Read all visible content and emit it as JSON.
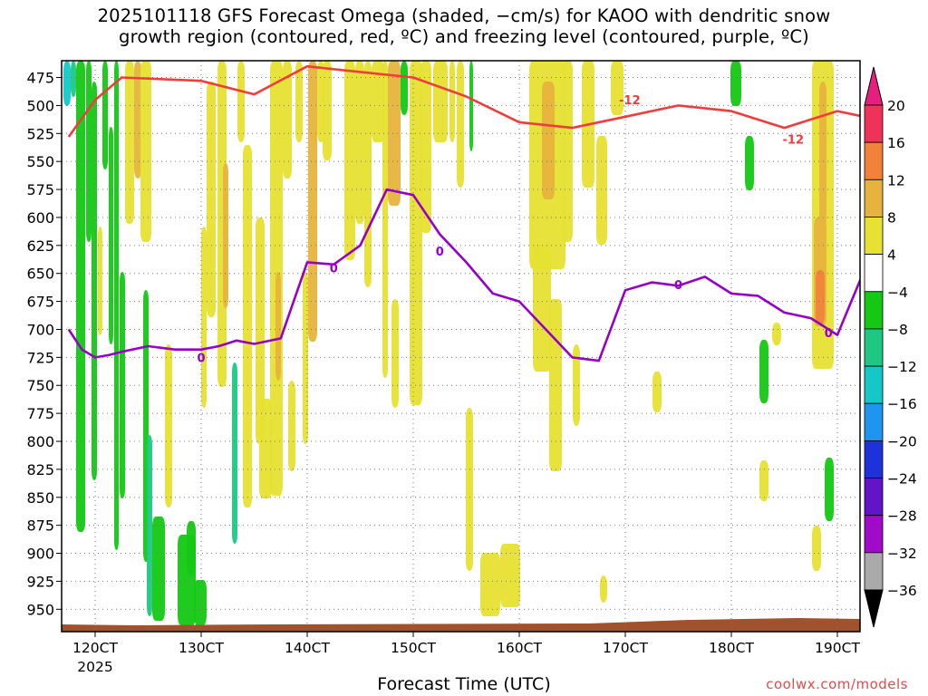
{
  "title_line1": "2025101118 GFS Forecast Omega (shaded, −cm/s) for KAOO with dendritic snow",
  "title_line2": "growth region (contoured, red, ºC) and freezing level (contoured, purple, ºC)",
  "credit": "coolwx.com/models",
  "chart_data": {
    "type": "heatmap",
    "title": "2025101118 GFS Forecast Omega (shaded, −cm/s) for KAOO with dendritic snow growth region (contoured, red, ºC) and freezing level (contoured, purple, ºC)",
    "xlabel": "Forecast Time (UTC)",
    "ylabel": "",
    "x_range": [
      "2025-10-11 18Z",
      "2025-10-19 06Z"
    ],
    "x_ticks": [
      {
        "value": "2025-10-12 00Z",
        "label": "120CT"
      },
      {
        "value": "2025-10-13 00Z",
        "label": "130CT"
      },
      {
        "value": "2025-10-14 00Z",
        "label": "140CT"
      },
      {
        "value": "2025-10-15 00Z",
        "label": "150CT"
      },
      {
        "value": "2025-10-16 00Z",
        "label": "160CT"
      },
      {
        "value": "2025-10-17 00Z",
        "label": "170CT"
      },
      {
        "value": "2025-10-18 00Z",
        "label": "180CT"
      },
      {
        "value": "2025-10-19 00Z",
        "label": "190CT"
      }
    ],
    "year_label": "2025",
    "y_ticks": [
      475,
      500,
      525,
      550,
      575,
      600,
      625,
      650,
      675,
      700,
      725,
      750,
      775,
      800,
      825,
      850,
      875,
      900,
      925,
      950
    ],
    "y_range": [
      460,
      970
    ],
    "grid": true,
    "colorbar": {
      "levels": [
        20,
        16,
        12,
        8,
        4,
        -4,
        -8,
        -12,
        -16,
        -20,
        -24,
        -28,
        -32,
        -36
      ],
      "colors": [
        "#f0325a",
        "#f0823c",
        "#e6b43c",
        "#e6e132",
        "#ffffff",
        "#14c814",
        "#1ec882",
        "#14c8c8",
        "#1e96f0",
        "#1e32dc",
        "#6414c8",
        "#a00ac8",
        "#aaaaaa"
      ],
      "top_color": "#e61e7d",
      "bottom_color": "#000000"
    },
    "series": [
      {
        "name": "0",
        "color": "#9600c8",
        "label_points": [
          [
            "2025-10-13 00Z",
            725
          ],
          [
            "2025-10-14 06Z",
            645
          ],
          [
            "2025-10-15 06Z",
            630
          ],
          [
            "2025-10-17 12Z",
            660
          ],
          [
            "2025-10-18 22Z",
            703
          ]
        ],
        "points": [
          [
            "2025-10-11 18Z",
            700
          ],
          [
            "2025-10-11 21Z",
            718
          ],
          [
            "2025-10-12 00Z",
            725
          ],
          [
            "2025-10-12 03Z",
            723
          ],
          [
            "2025-10-12 06Z",
            720
          ],
          [
            "2025-10-12 12Z",
            715
          ],
          [
            "2025-10-12 18Z",
            718
          ],
          [
            "2025-10-13 00Z",
            718
          ],
          [
            "2025-10-13 04Z",
            715
          ],
          [
            "2025-10-13 08Z",
            710
          ],
          [
            "2025-10-13 12Z",
            713
          ],
          [
            "2025-10-13 18Z",
            708
          ],
          [
            "2025-10-14 00Z",
            640
          ],
          [
            "2025-10-14 06Z",
            642
          ],
          [
            "2025-10-14 12Z",
            625
          ],
          [
            "2025-10-14 18Z",
            575
          ],
          [
            "2025-10-15 00Z",
            580
          ],
          [
            "2025-10-15 06Z",
            615
          ],
          [
            "2025-10-15 12Z",
            640
          ],
          [
            "2025-10-15 18Z",
            668
          ],
          [
            "2025-10-16 00Z",
            675
          ],
          [
            "2025-10-16 06Z",
            700
          ],
          [
            "2025-10-16 12Z",
            725
          ],
          [
            "2025-10-16 18Z",
            728
          ],
          [
            "2025-10-17 00Z",
            665
          ],
          [
            "2025-10-17 06Z",
            658
          ],
          [
            "2025-10-17 12Z",
            661
          ],
          [
            "2025-10-17 18Z",
            653
          ],
          [
            "2025-10-18 00Z",
            668
          ],
          [
            "2025-10-18 06Z",
            670
          ],
          [
            "2025-10-18 12Z",
            685
          ],
          [
            "2025-10-18 18Z",
            690
          ],
          [
            "2025-10-19 00Z",
            705
          ],
          [
            "2025-10-19 06Z",
            648
          ]
        ]
      },
      {
        "name": "-12",
        "color": "#f03c3c",
        "label_points": [
          [
            "2025-10-17 01Z",
            495
          ],
          [
            "2025-10-18 14Z",
            530
          ]
        ],
        "points": [
          [
            "2025-10-11 18Z",
            528
          ],
          [
            "2025-10-12 00Z",
            495
          ],
          [
            "2025-10-12 06Z",
            475
          ],
          [
            "2025-10-13 00Z",
            478
          ],
          [
            "2025-10-13 12Z",
            490
          ],
          [
            "2025-10-14 00Z",
            465
          ],
          [
            "2025-10-14 12Z",
            470
          ],
          [
            "2025-10-15 00Z",
            475
          ],
          [
            "2025-10-15 12Z",
            492
          ],
          [
            "2025-10-16 00Z",
            515
          ],
          [
            "2025-10-16 12Z",
            520
          ],
          [
            "2025-10-17 00Z",
            510
          ],
          [
            "2025-10-17 12Z",
            500
          ],
          [
            "2025-10-18 00Z",
            505
          ],
          [
            "2025-10-18 12Z",
            520
          ],
          [
            "2025-10-19 00Z",
            505
          ],
          [
            "2025-10-19 06Z",
            510
          ]
        ]
      }
    ]
  }
}
